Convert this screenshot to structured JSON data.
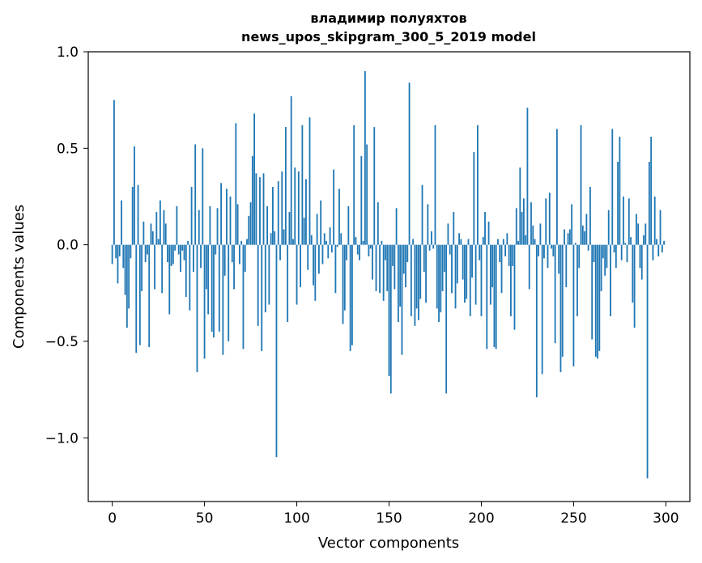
{
  "chart_data": {
    "type": "bar",
    "title_line1": "владимир полуяхтов",
    "title_line2": "news_upos_skipgram_300_5_2019 model",
    "xlabel": "Vector components",
    "ylabel": "Components values",
    "xlim": [
      -13,
      313
    ],
    "ylim": [
      -1.33,
      1.0
    ],
    "x_ticks": [
      0,
      50,
      100,
      150,
      200,
      250,
      300
    ],
    "y_ticks": [
      1.0,
      0.5,
      0.0,
      -0.5,
      -1.0
    ],
    "y_tick_labels": [
      "1.0",
      "0.5",
      "0.0",
      "−0.5",
      "−1.0"
    ],
    "grid": false,
    "legend": "none",
    "bar_color": "#1f77b4",
    "values": [
      -0.1,
      0.75,
      -0.07,
      -0.2,
      -0.06,
      0.23,
      -0.12,
      -0.26,
      -0.43,
      -0.33,
      -0.07,
      0.3,
      0.51,
      -0.56,
      0.31,
      -0.52,
      -0.24,
      0.12,
      -0.09,
      -0.05,
      -0.53,
      0.11,
      0.07,
      -0.23,
      0.17,
      0.03,
      0.23,
      -0.25,
      0.18,
      0.11,
      -0.09,
      -0.36,
      -0.11,
      -0.1,
      -0.03,
      0.2,
      -0.05,
      -0.14,
      -0.03,
      -0.08,
      -0.27,
      0.02,
      -0.34,
      0.3,
      -0.14,
      0.52,
      -0.66,
      0.18,
      -0.12,
      0.5,
      -0.59,
      -0.23,
      -0.36,
      0.2,
      -0.45,
      -0.48,
      -0.05,
      0.19,
      -0.45,
      0.32,
      -0.57,
      -0.16,
      0.29,
      -0.5,
      0.25,
      -0.09,
      -0.23,
      0.63,
      0.21,
      -0.1,
      0.02,
      -0.54,
      -0.14,
      0.03,
      0.15,
      0.22,
      0.46,
      0.68,
      0.37,
      -0.42,
      0.35,
      -0.55,
      0.37,
      -0.35,
      0.2,
      -0.31,
      0.06,
      0.3,
      0.07,
      -1.1,
      0.33,
      -0.08,
      0.38,
      0.08,
      0.61,
      -0.4,
      0.17,
      0.77,
      0.03,
      0.4,
      -0.31,
      0.38,
      -0.22,
      0.62,
      0.14,
      0.34,
      -0.13,
      0.66,
      0.05,
      -0.21,
      -0.29,
      0.16,
      -0.15,
      0.23,
      -0.1,
      0.06,
      0.02,
      -0.07,
      0.09,
      -0.04,
      0.39,
      -0.25,
      -0.01,
      0.29,
      0.06,
      -0.41,
      -0.34,
      -0.08,
      0.2,
      -0.55,
      -0.52,
      0.62,
      0.04,
      -0.05,
      -0.08,
      0.46,
      0.02,
      0.9,
      0.52,
      -0.06,
      -0.02,
      -0.18,
      0.61,
      -0.24,
      0.22,
      -0.25,
      0.02,
      -0.29,
      -0.08,
      -0.24,
      -0.68,
      -0.77,
      -0.11,
      -0.23,
      0.19,
      -0.4,
      -0.32,
      -0.57,
      -0.15,
      -0.22,
      -0.09,
      0.84,
      -0.37,
      0.03,
      -0.42,
      -0.33,
      -0.39,
      -0.28,
      0.31,
      -0.14,
      -0.3,
      0.21,
      -0.03,
      0.07,
      -0.02,
      0.62,
      -0.33,
      -0.4,
      -0.35,
      -0.24,
      -0.14,
      -0.77,
      0.11,
      -0.05,
      -0.25,
      0.17,
      -0.33,
      -0.2,
      0.06,
      0.03,
      -0.18,
      -0.3,
      -0.28,
      0.03,
      -0.37,
      -0.17,
      0.48,
      -0.31,
      0.62,
      -0.08,
      -0.37,
      0.04,
      0.17,
      -0.54,
      0.12,
      -0.31,
      -0.22,
      -0.53,
      -0.54,
      0.03,
      -0.09,
      -0.25,
      0.03,
      -0.06,
      0.06,
      -0.11,
      -0.37,
      -0.11,
      -0.44,
      0.19,
      0.02,
      0.4,
      0.17,
      0.24,
      0.05,
      0.71,
      -0.23,
      0.22,
      0.1,
      0.03,
      -0.79,
      -0.06,
      0.11,
      -0.67,
      -0.07,
      0.24,
      -0.12,
      0.27,
      -0.02,
      -0.06,
      -0.51,
      0.6,
      -0.15,
      -0.66,
      -0.58,
      0.08,
      -0.22,
      0.06,
      0.08,
      0.21,
      -0.63,
      0.01,
      -0.37,
      -0.12,
      0.62,
      0.1,
      0.07,
      0.16,
      -0.03,
      0.3,
      -0.49,
      -0.09,
      -0.58,
      -0.59,
      -0.55,
      -0.24,
      -0.07,
      -0.16,
      -0.12,
      0.18,
      -0.37,
      0.6,
      -0.04,
      -0.12,
      0.43,
      0.56,
      -0.08,
      0.25,
      0.01,
      -0.09,
      0.24,
      0.04,
      -0.3,
      -0.43,
      0.16,
      0.11,
      -0.12,
      -0.18,
      0.05,
      0.11,
      -1.21,
      0.43,
      0.56,
      -0.08,
      0.25,
      0.03,
      -0.06,
      0.18,
      -0.04,
      0.02
    ]
  }
}
